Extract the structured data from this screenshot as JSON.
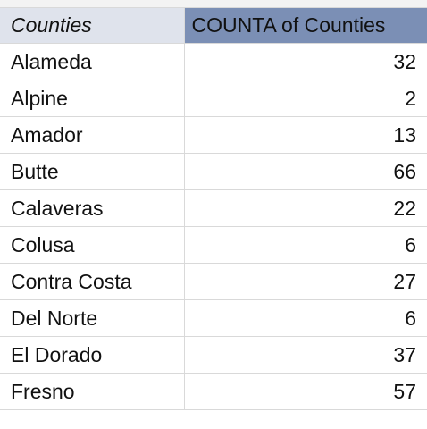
{
  "pivot": {
    "header_row_label": "Counties",
    "header_value_label": "COUNTA of Counties",
    "rows": [
      {
        "county": "Alameda",
        "count": "32"
      },
      {
        "county": "Alpine",
        "count": "2"
      },
      {
        "county": "Amador",
        "count": "13"
      },
      {
        "county": "Butte",
        "count": "66"
      },
      {
        "county": "Calaveras",
        "count": "22"
      },
      {
        "county": "Colusa",
        "count": "6"
      },
      {
        "county": "Contra Costa",
        "count": "27"
      },
      {
        "county": "Del Norte",
        "count": "6"
      },
      {
        "county": "El Dorado",
        "count": "37"
      },
      {
        "county": "Fresno",
        "count": "57"
      }
    ]
  },
  "colors": {
    "header_row_label_bg": "#dfe3ec",
    "header_value_label_bg": "#7b8fb5",
    "grid_line": "#d9d9d9"
  }
}
